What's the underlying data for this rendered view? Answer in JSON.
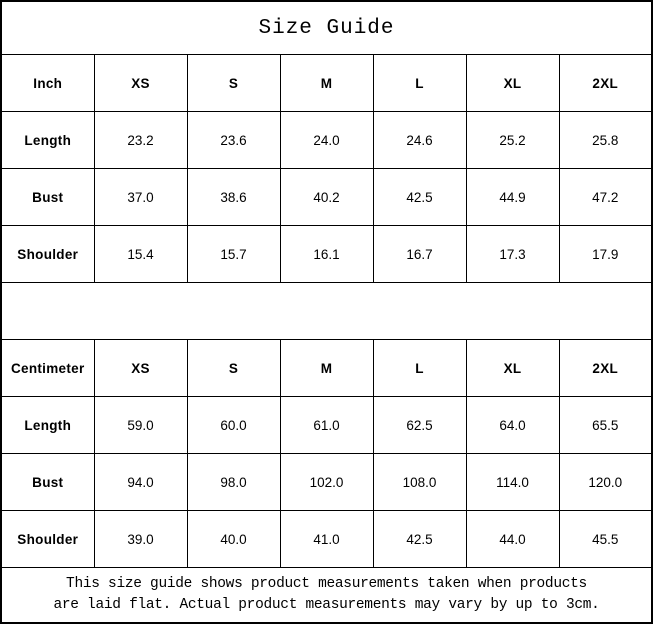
{
  "title": "Size Guide",
  "tables": [
    {
      "unit": "Inch",
      "sizes": [
        "XS",
        "S",
        "M",
        "L",
        "XL",
        "2XL"
      ],
      "rows": [
        {
          "label": "Length",
          "values": [
            "23.2",
            "23.6",
            "24.0",
            "24.6",
            "25.2",
            "25.8"
          ]
        },
        {
          "label": "Bust",
          "values": [
            "37.0",
            "38.6",
            "40.2",
            "42.5",
            "44.9",
            "47.2"
          ]
        },
        {
          "label": "Shoulder",
          "values": [
            "15.4",
            "15.7",
            "16.1",
            "16.7",
            "17.3",
            "17.9"
          ]
        }
      ]
    },
    {
      "unit": "Centimeter",
      "sizes": [
        "XS",
        "S",
        "M",
        "L",
        "XL",
        "2XL"
      ],
      "rows": [
        {
          "label": "Length",
          "values": [
            "59.0",
            "60.0",
            "61.0",
            "62.5",
            "64.0",
            "65.5"
          ]
        },
        {
          "label": "Bust",
          "values": [
            "94.0",
            "98.0",
            "102.0",
            "108.0",
            "114.0",
            "120.0"
          ]
        },
        {
          "label": "Shoulder",
          "values": [
            "39.0",
            "40.0",
            "41.0",
            "42.5",
            "44.0",
            "45.5"
          ]
        }
      ]
    }
  ],
  "footer": {
    "line1": "This size guide shows product measurements taken when products",
    "line2": "are laid flat. Actual product measurements may vary by up to 3cm."
  },
  "colors": {
    "border": "#000000",
    "text": "#000000",
    "background": "#ffffff"
  }
}
